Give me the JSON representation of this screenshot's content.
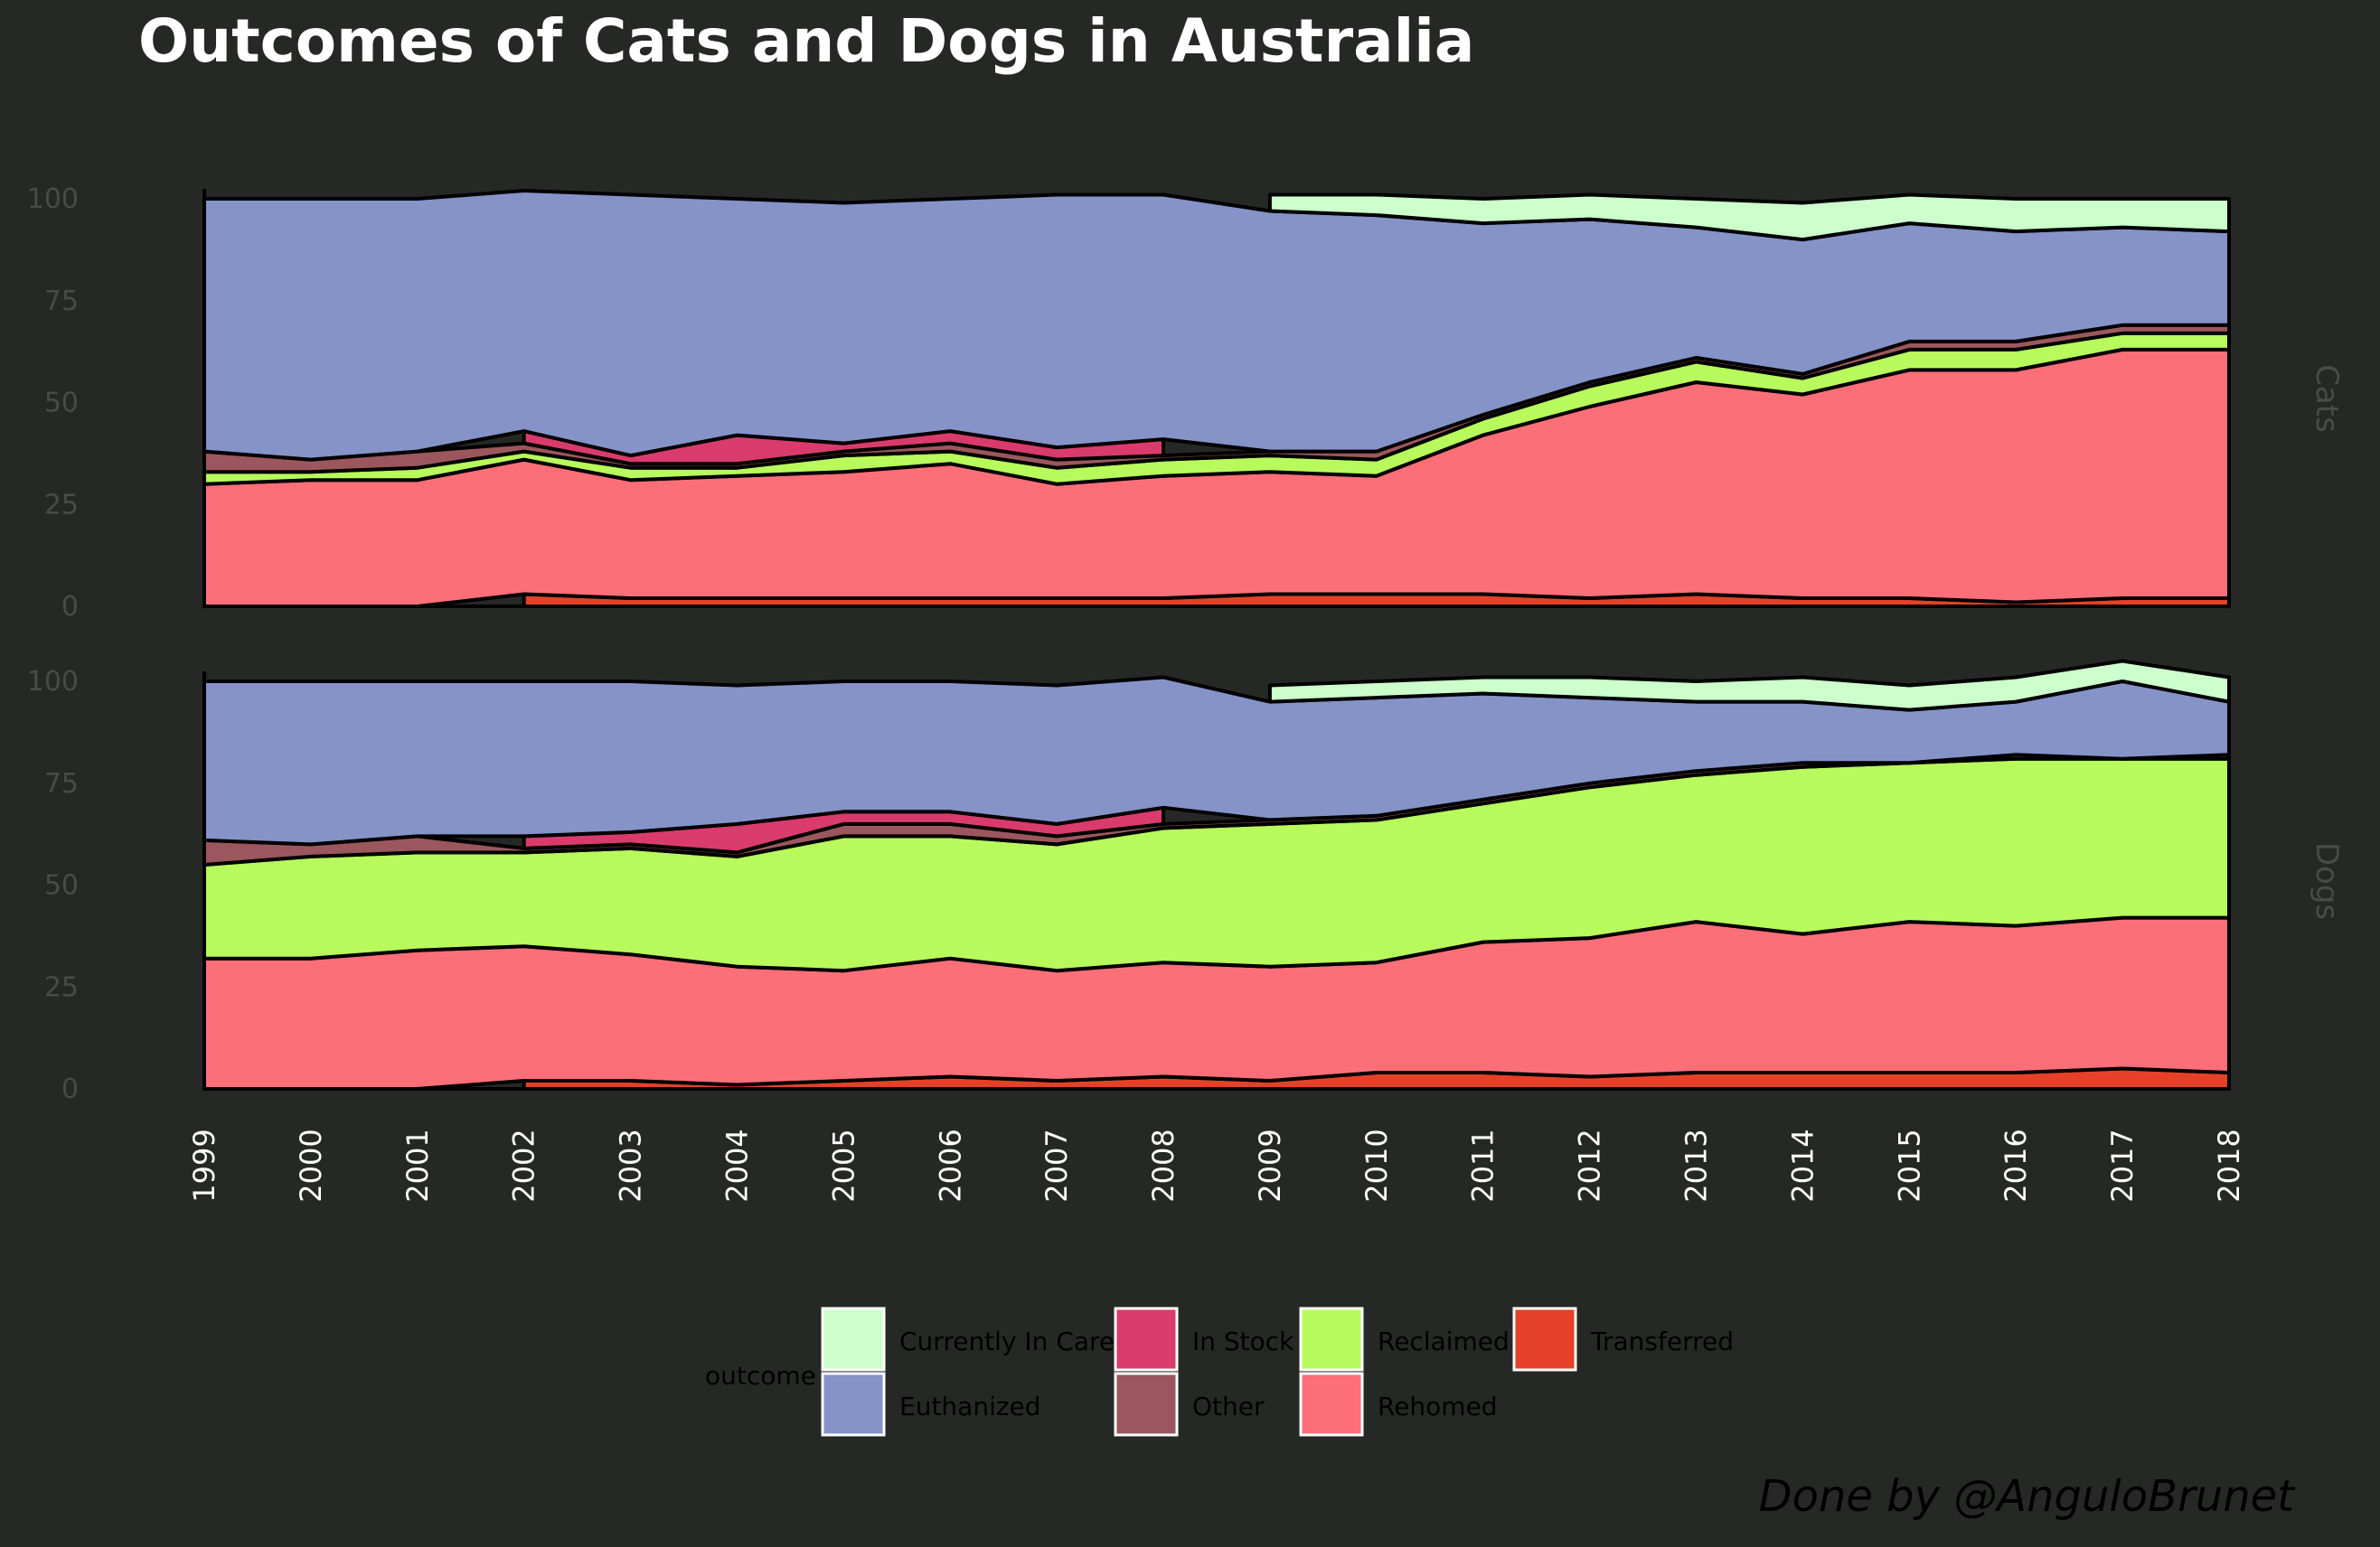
{
  "chart_data": {
    "type": "area",
    "title": "Outcomes of Cats and Dogs in Australia",
    "caption": "Done by @AnguloBrunet",
    "x": [
      "1999",
      "2000",
      "2001",
      "2002",
      "2003",
      "2004",
      "2005",
      "2006",
      "2007",
      "2008",
      "2009",
      "2010",
      "2011",
      "2012",
      "2013",
      "2014",
      "2015",
      "2016",
      "2017",
      "2018"
    ],
    "ylim": [
      0,
      102
    ],
    "y_ticks": [
      "0",
      "25",
      "50",
      "75",
      "100"
    ],
    "grid": false,
    "stack_order": [
      "Transferred",
      "Rehomed",
      "Reclaimed",
      "Other",
      "In Stock",
      "Euthanized",
      "Currently In Care"
    ],
    "legend": {
      "title": "outcome",
      "position": "bottom",
      "entries": [
        "Currently In Care",
        "In Stock",
        "Reclaimed",
        "Transferred",
        "Euthanized",
        "Other",
        "Rehomed"
      ]
    },
    "colors": {
      "Currently In Care": "#ccffcc",
      "Euthanized": "#8593c8",
      "In Stock": "#d93b6e",
      "Other": "#9b575d",
      "Reclaimed": "#b8fa5c",
      "Rehomed": "#fc6f79",
      "Transferred": "#e64128",
      "background": "#262826",
      "text": "#ffffff",
      "tick_text": "#494b49",
      "stroke": "#000000"
    },
    "panels": [
      {
        "label": "Cats",
        "series": [
          {
            "name": "Transferred",
            "values": [
              null,
              null,
              null,
              3,
              2,
              2,
              2,
              2,
              2,
              2,
              3,
              3,
              3,
              2,
              3,
              2,
              2,
              1,
              2,
              2
            ]
          },
          {
            "name": "Rehomed",
            "values": [
              30,
              31,
              31,
              33,
              29,
              30,
              31,
              33,
              28,
              30,
              30,
              29,
              39,
              47,
              52,
              50,
              56,
              57,
              61,
              61
            ]
          },
          {
            "name": "Reclaimed",
            "values": [
              3,
              2,
              3,
              2,
              3,
              2,
              4,
              3,
              4,
              4,
              4,
              4,
              4,
              5,
              5,
              4,
              5,
              5,
              4,
              4
            ]
          },
          {
            "name": "Other",
            "values": [
              5,
              3,
              4,
              2,
              1,
              1,
              1,
              2,
              2,
              1,
              1,
              2,
              1,
              1,
              1,
              1,
              2,
              2,
              2,
              2
            ]
          },
          {
            "name": "In Stock",
            "values": [
              null,
              null,
              null,
              3,
              2,
              7,
              2,
              3,
              3,
              4,
              null,
              null,
              null,
              null,
              null,
              null,
              null,
              null,
              null,
              null
            ]
          },
          {
            "name": "Euthanized",
            "values": [
              62,
              64,
              62,
              59,
              64,
              58,
              59,
              57,
              62,
              60,
              59,
              58,
              47,
              40,
              32,
              33,
              29,
              27,
              24,
              23
            ]
          },
          {
            "name": "Currently In Care",
            "values": [
              null,
              null,
              null,
              null,
              null,
              null,
              null,
              null,
              null,
              null,
              4,
              5,
              6,
              6,
              7,
              9,
              7,
              8,
              7,
              8
            ]
          }
        ]
      },
      {
        "label": "Dogs",
        "series": [
          {
            "name": "Transferred",
            "values": [
              null,
              null,
              null,
              2,
              2,
              1,
              2,
              3,
              2,
              3,
              2,
              4,
              4,
              3,
              4,
              4,
              4,
              4,
              5,
              4
            ]
          },
          {
            "name": "Rehomed",
            "values": [
              32,
              32,
              34,
              33,
              31,
              29,
              27,
              29,
              27,
              28,
              28,
              27,
              32,
              34,
              37,
              34,
              37,
              36,
              37,
              38
            ]
          },
          {
            "name": "Reclaimed",
            "values": [
              23,
              25,
              24,
              23,
              26,
              27,
              33,
              30,
              31,
              33,
              35,
              35,
              34,
              37,
              36,
              41,
              39,
              41,
              39,
              39
            ]
          },
          {
            "name": "Other",
            "values": [
              6,
              3,
              4,
              1,
              1,
              1,
              3,
              3,
              2,
              1,
              1,
              1,
              1,
              1,
              1,
              1,
              0,
              1,
              0,
              1
            ]
          },
          {
            "name": "In Stock",
            "values": [
              null,
              null,
              null,
              3,
              3,
              7,
              3,
              3,
              3,
              4,
              null,
              null,
              null,
              null,
              null,
              null,
              null,
              null,
              null,
              null
            ]
          },
          {
            "name": "Euthanized",
            "values": [
              39,
              40,
              38,
              38,
              37,
              34,
              32,
              32,
              34,
              32,
              29,
              29,
              26,
              21,
              17,
              15,
              13,
              13,
              19,
              13
            ]
          },
          {
            "name": "Currently In Care",
            "values": [
              null,
              null,
              null,
              null,
              null,
              null,
              null,
              null,
              null,
              null,
              4,
              4,
              4,
              5,
              5,
              6,
              6,
              6,
              5,
              6
            ]
          }
        ]
      }
    ]
  }
}
